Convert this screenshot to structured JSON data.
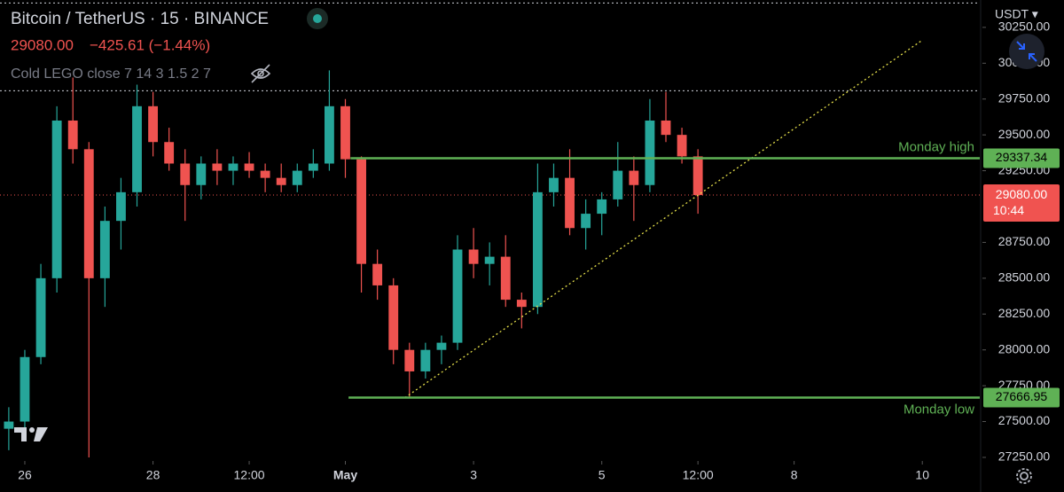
{
  "chart_data": {
    "type": "candlestick",
    "title": "Bitcoin / TetherUS · 15 · BINANCE",
    "change": "−425.61 (−1.44%)",
    "indicator": "Cold LEGO close 7 14 3 1.5 2 7",
    "currency": "USDT ▾",
    "last": {
      "value": 29080,
      "label": "29080.00",
      "countdown": "10:44",
      "color": "#f05350"
    },
    "up_color": "#26a69a",
    "down_color": "#ef5350",
    "x": [
      -0.25,
      0,
      0.25,
      0.5,
      0.75,
      1,
      1.25,
      1.5,
      1.75,
      2,
      2.25,
      2.5,
      2.75,
      3,
      3.25,
      3.5,
      3.75,
      4,
      4.25,
      4.5,
      4.75,
      5,
      5.25,
      5.5,
      5.75,
      6,
      6.25,
      6.5,
      6.75,
      7,
      7.25,
      7.5,
      7.75,
      8,
      8.25,
      8.5,
      8.75,
      9,
      9.25,
      9.5,
      9.75,
      10,
      10.25,
      10.5
    ],
    "open": [
      27450,
      27500,
      27950,
      28500,
      29600,
      29400,
      28500,
      28900,
      29100,
      29700,
      29450,
      29300,
      29150,
      29300,
      29250,
      29300,
      29250,
      29200,
      29150,
      29250,
      29300,
      29700,
      29330,
      28600,
      28450,
      28000,
      27850,
      28000,
      28050,
      28700,
      28600,
      28650,
      28350,
      28300,
      29100,
      29200,
      28850,
      28950,
      29050,
      29250,
      29150,
      29600,
      29500,
      29350
    ],
    "high": [
      27600,
      28000,
      28600,
      29700,
      29900,
      29450,
      29000,
      29200,
      29850,
      29800,
      29550,
      29400,
      29350,
      29400,
      29350,
      29380,
      29300,
      29300,
      29300,
      29400,
      29950,
      29750,
      29350,
      28700,
      28500,
      28050,
      28050,
      28100,
      28800,
      28850,
      28750,
      28800,
      28400,
      29300,
      29300,
      29400,
      29050,
      29100,
      29450,
      29350,
      29750,
      29800,
      29550,
      29400
    ],
    "low": [
      27300,
      27450,
      27900,
      28400,
      29300,
      27250,
      28300,
      28700,
      29000,
      29350,
      29250,
      28900,
      29050,
      29150,
      29150,
      29200,
      29100,
      29100,
      29100,
      29200,
      29250,
      29200,
      28400,
      28350,
      27900,
      27666.95,
      27800,
      27900,
      28000,
      28500,
      28450,
      28300,
      28150,
      28250,
      29000,
      28800,
      28700,
      28800,
      29000,
      28900,
      29100,
      29450,
      29300,
      28950
    ],
    "close": [
      27500,
      27950,
      28500,
      29600,
      29400,
      28500,
      28900,
      29100,
      29700,
      29450,
      29300,
      29150,
      29300,
      29250,
      29300,
      29250,
      29200,
      29150,
      29250,
      29300,
      29700,
      29330,
      28600,
      28450,
      28000,
      27850,
      28000,
      28050,
      28700,
      28600,
      28650,
      28350,
      28300,
      29100,
      29200,
      28850,
      28950,
      29050,
      29250,
      29150,
      29600,
      29500,
      29350,
      29080
    ],
    "levels": [
      {
        "label": "Monday high",
        "value": 29337.34,
        "value_label": "29337.34",
        "x_start": 5.08,
        "color": "#5fb155"
      },
      {
        "label": "Monday low",
        "value": 27666.95,
        "value_label": "27666.95",
        "x_start": 5.05,
        "color": "#5fb155"
      }
    ],
    "dotted_levels": [
      30420,
      29808
    ],
    "trendline": {
      "x": [
        5.93,
        14.0
      ],
      "values": [
        27666.95,
        30161
      ],
      "color": "#e6e04a"
    },
    "xlim": [
      -0.387,
      14.896
    ],
    "ylim": [
      27225,
      30441
    ],
    "xticks": [
      {
        "value": 0,
        "label": "26"
      },
      {
        "value": 2,
        "label": "28"
      },
      {
        "value": 3.5,
        "label": "12:00"
      },
      {
        "value": 5,
        "label": "May"
      },
      {
        "value": 7,
        "label": "3"
      },
      {
        "value": 9,
        "label": "5"
      },
      {
        "value": 10.5,
        "label": "12:00"
      },
      {
        "value": 12,
        "label": "8"
      },
      {
        "value": 14,
        "label": "10"
      }
    ],
    "yticks": [
      {
        "value": 27250,
        "label": "27250.00"
      },
      {
        "value": 27500,
        "label": "27500.00"
      },
      {
        "value": 27750,
        "label": "27750.00"
      },
      {
        "value": 28000,
        "label": "28000.00"
      },
      {
        "value": 28250,
        "label": "28250.00"
      },
      {
        "value": 28500,
        "label": "28500.00"
      },
      {
        "value": 28750,
        "label": "28750.00"
      },
      {
        "value": 29250,
        "label": "29250.00"
      },
      {
        "value": 29500,
        "label": "29500.00"
      },
      {
        "value": 29750,
        "label": "29750.00"
      },
      {
        "value": 30000,
        "label": "30000.00"
      },
      {
        "value": 30250,
        "label": "30250.00"
      }
    ]
  }
}
